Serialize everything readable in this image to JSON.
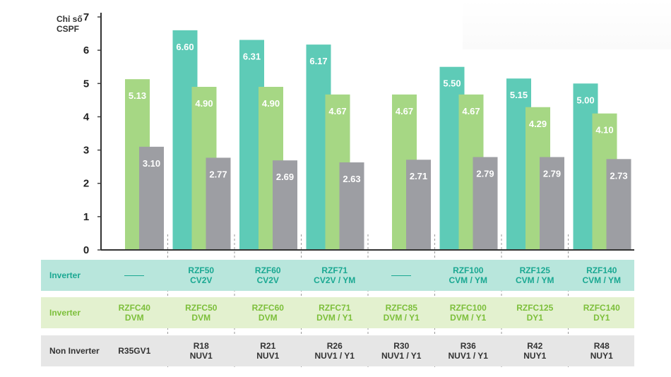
{
  "chart_data": {
    "type": "bar",
    "ylabel_line1": "Chỉ số",
    "ylabel_line2": "CSPF",
    "ylim": [
      0,
      7
    ],
    "yticks": [
      "0",
      "1",
      "2",
      "3",
      "4",
      "5",
      "6",
      "7"
    ],
    "series": [
      {
        "name": "Inverter (RZF)",
        "color": "#5ecbb7",
        "values": [
          null,
          6.6,
          6.31,
          6.17,
          null,
          5.5,
          5.15,
          5.0
        ],
        "labels": [
          "",
          "6.60",
          "6.31",
          "6.17",
          "",
          "5.50",
          "5.15",
          "5.00"
        ]
      },
      {
        "name": "Inverter (RZFC)",
        "color": "#a6d784",
        "values": [
          5.13,
          4.9,
          4.9,
          4.67,
          4.67,
          4.67,
          4.29,
          4.1
        ],
        "labels": [
          "5.13",
          "4.90",
          "4.90",
          "4.67",
          "4.67",
          "4.67",
          "4.29",
          "4.10"
        ]
      },
      {
        "name": "Non Inverter",
        "color": "#9d9ea3",
        "values": [
          3.1,
          2.77,
          2.69,
          2.63,
          2.71,
          2.79,
          2.79,
          2.73
        ],
        "labels": [
          "3.10",
          "2.77",
          "2.69",
          "2.63",
          "2.71",
          "2.79",
          "2.79",
          "2.73"
        ]
      }
    ]
  },
  "table": {
    "rows": [
      {
        "label": "Inverter",
        "cells": [
          [
            "—"
          ],
          [
            "RZF50",
            "CV2V"
          ],
          [
            "RZF60",
            "CV2V"
          ],
          [
            "RZF71",
            "CV2V / YM"
          ],
          [
            "—"
          ],
          [
            "RZF100",
            "CVM / YM"
          ],
          [
            "RZF125",
            "CVM / YM"
          ],
          [
            "RZF140",
            "CVM / YM"
          ]
        ]
      },
      {
        "label": "Inverter",
        "cells": [
          [
            "RZFC40",
            "DVM"
          ],
          [
            "RZFC50",
            "DVM"
          ],
          [
            "RZFC60",
            "DVM"
          ],
          [
            "RZFC71",
            "DVM / Y1"
          ],
          [
            "RZFC85",
            "DVM / Y1"
          ],
          [
            "RZFC100",
            "DVM / Y1"
          ],
          [
            "RZFC125",
            "DY1"
          ],
          [
            "RZFC140",
            "DY1"
          ]
        ]
      },
      {
        "label": "Non Inverter",
        "cells": [
          [
            "R35GV1"
          ],
          [
            "R18",
            "NUV1"
          ],
          [
            "R21",
            "NUV1"
          ],
          [
            "R26",
            "NUV1 / Y1"
          ],
          [
            "R30",
            "NUV1 / Y1"
          ],
          [
            "R36",
            "NUV1 / Y1"
          ],
          [
            "R42",
            "NUY1"
          ],
          [
            "R48",
            "NUY1"
          ]
        ]
      }
    ]
  }
}
